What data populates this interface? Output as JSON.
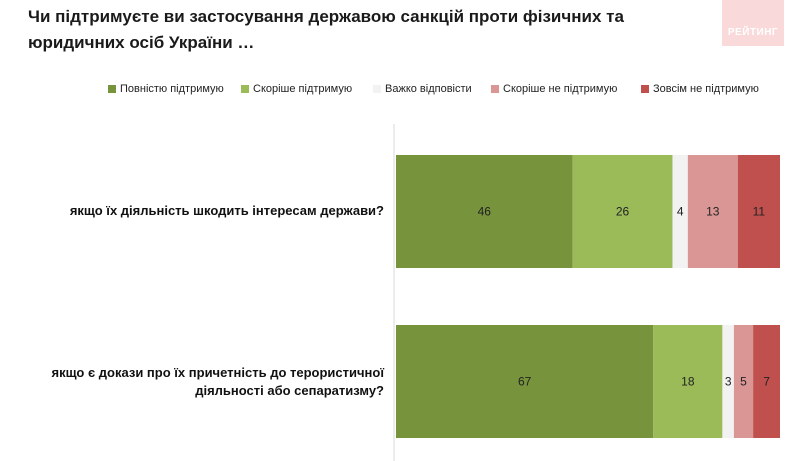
{
  "title": "Чи підтримуєте ви застосування державою санкцій проти фізичних та юридичних осіб України …",
  "logo_text": "РЕЙТИНГ",
  "chart_data": {
    "type": "bar",
    "orientation": "horizontal",
    "stacked": true,
    "title": "Чи підтримуєте ви застосування державою санкцій проти фізичних та юридичних осіб України …",
    "legend_position": "top",
    "xlim": [
      0,
      100
    ],
    "categories": [
      "якщо їх діяльність шкодить інтересам держави?",
      "якщо є докази про їх причетність до терористичної діяльності або сепаратизму?"
    ],
    "series": [
      {
        "name": "Повністю підтримую",
        "color": "#77933c",
        "values": [
          46,
          67
        ]
      },
      {
        "name": "Скоріше підтримую",
        "color": "#9bbb59",
        "values": [
          26,
          18
        ]
      },
      {
        "name": "Важко відповісти",
        "color": "#f2f2f2",
        "values": [
          4,
          3
        ]
      },
      {
        "name": "Скоріше не підтримую",
        "color": "#d99694",
        "values": [
          13,
          5
        ]
      },
      {
        "name": "Зовсім не підтримую",
        "color": "#c0504d",
        "values": [
          11,
          7
        ]
      }
    ]
  }
}
